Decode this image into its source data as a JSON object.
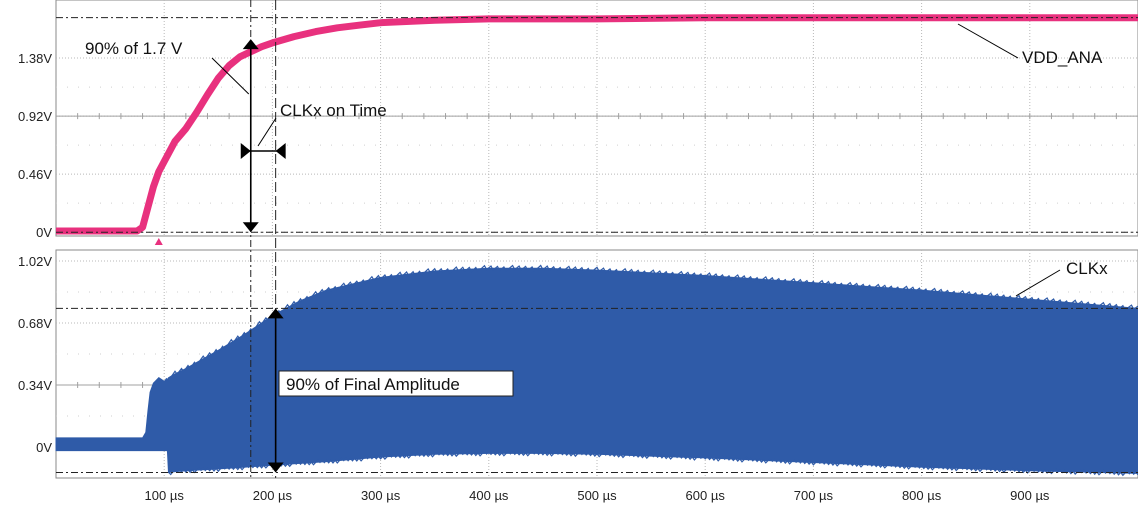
{
  "chart_data": [
    {
      "type": "line",
      "panel": "top",
      "xlabel": "",
      "ylabel": "",
      "xlim": [
        0,
        1000
      ],
      "ylim": [
        -0.03,
        1.84
      ],
      "yticks": [
        "0V",
        "0.46V",
        "0.92V",
        "1.38V"
      ],
      "ytick_values": [
        0,
        0.46,
        0.92,
        1.38
      ],
      "series": [
        {
          "name": "VDD_ANA",
          "color": "#e8317e",
          "x": [
            0,
            75,
            80,
            85,
            90,
            95,
            100,
            110,
            120,
            130,
            140,
            150,
            160,
            170,
            180,
            190,
            200,
            220,
            240,
            260,
            280,
            300,
            350,
            400,
            500,
            600,
            700,
            800,
            900,
            1000
          ],
          "y": [
            0.01,
            0.01,
            0.04,
            0.2,
            0.36,
            0.48,
            0.56,
            0.72,
            0.82,
            0.95,
            1.09,
            1.22,
            1.32,
            1.39,
            1.43,
            1.47,
            1.5,
            1.55,
            1.59,
            1.62,
            1.64,
            1.66,
            1.68,
            1.69,
            1.69,
            1.7,
            1.7,
            1.7,
            1.7,
            1.7
          ]
        }
      ],
      "annotations": [
        {
          "text": "90% of 1.7 V"
        },
        {
          "text": "CLKx on Time"
        },
        {
          "text": "VDD_ANA"
        }
      ],
      "reference_lines_y": [
        1.7,
        0
      ],
      "trigger_marker_x": 95
    },
    {
      "type": "area",
      "panel": "bottom",
      "xlabel": "",
      "ylabel": "",
      "xlim": [
        0,
        1000
      ],
      "ylim": [
        -0.17,
        1.08
      ],
      "yticks": [
        "0V",
        "0.34V",
        "0.68V",
        "1.02V"
      ],
      "ytick_values": [
        0,
        0.34,
        0.68,
        1.02
      ],
      "x_tick_labels": [
        "100 µs",
        "200 µs",
        "300 µs",
        "400 µs",
        "500 µs",
        "600 µs",
        "700 µs",
        "800 µs",
        "900 µs"
      ],
      "x_tick_values": [
        100,
        200,
        300,
        400,
        500,
        600,
        700,
        800,
        900
      ],
      "series": [
        {
          "name": "CLKx",
          "color": "#2f5ba8",
          "x": [
            0,
            80,
            83,
            85,
            87,
            90,
            95,
            100,
            103,
            104,
            110,
            120,
            150,
            175,
            200,
            225,
            250,
            300,
            350,
            400,
            450,
            500,
            600,
            700,
            800,
            900,
            1000
          ],
          "upper": [
            0.05,
            0.05,
            0.08,
            0.2,
            0.3,
            0.35,
            0.38,
            0.36,
            0.37,
            0.38,
            0.4,
            0.43,
            0.53,
            0.62,
            0.72,
            0.8,
            0.86,
            0.93,
            0.965,
            0.98,
            0.98,
            0.97,
            0.94,
            0.9,
            0.86,
            0.81,
            0.76
          ],
          "lower": [
            -0.02,
            -0.02,
            -0.02,
            -0.02,
            -0.02,
            -0.02,
            -0.02,
            -0.02,
            -0.02,
            -0.14,
            -0.135,
            -0.13,
            -0.12,
            -0.11,
            -0.1,
            -0.09,
            -0.08,
            -0.055,
            -0.04,
            -0.035,
            -0.035,
            -0.04,
            -0.06,
            -0.085,
            -0.11,
            -0.13,
            -0.145
          ]
        }
      ],
      "annotations": [
        {
          "text": "90% of Final Amplitude"
        },
        {
          "text": "CLKx"
        }
      ],
      "reference_lines_y": [
        0.76,
        -0.14
      ]
    }
  ],
  "markers": {
    "cursor_90_percent_x": 180,
    "cursor_clk_on_x": 203
  },
  "colors": {
    "vdd_trace": "#e8317e",
    "clk_trace": "#2f5ba8",
    "grid": "#b8b8b8",
    "frame": "#8a8a8a"
  }
}
